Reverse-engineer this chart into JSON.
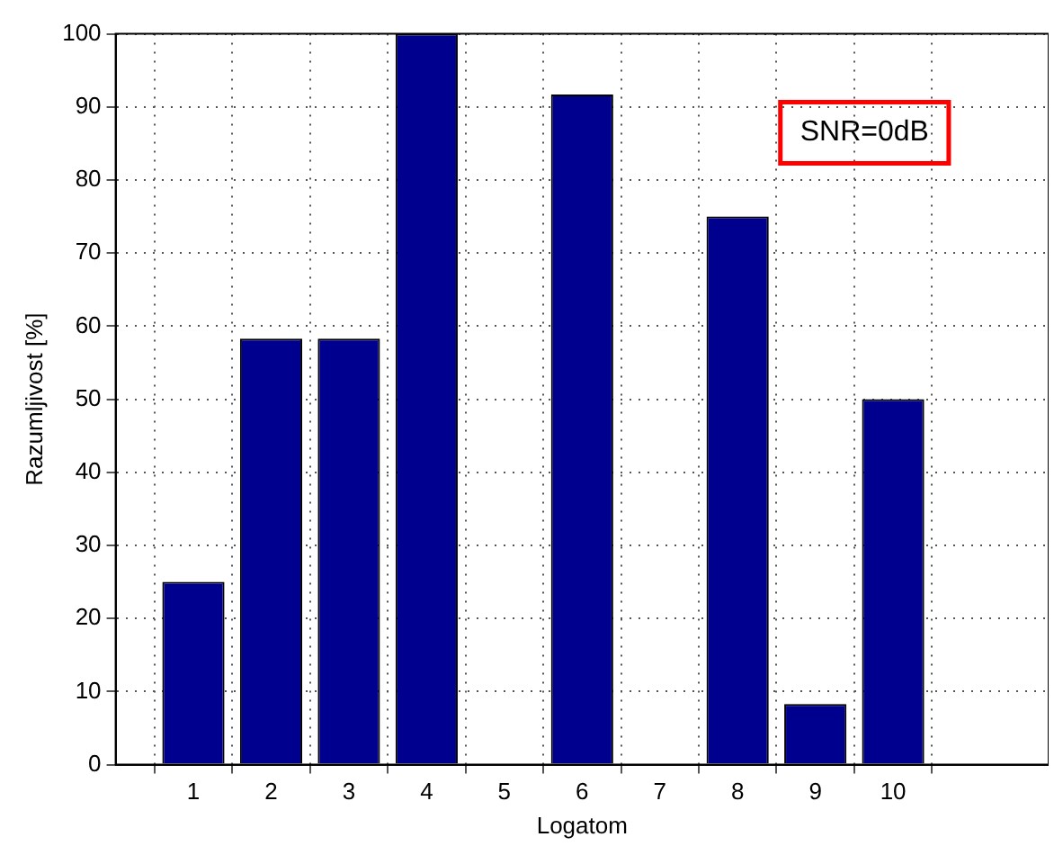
{
  "chart_data": {
    "type": "bar",
    "xlabel": "Logatom",
    "ylabel": "Razumljivost [%]",
    "x": [
      1,
      2,
      3,
      4,
      5,
      6,
      7,
      8,
      9,
      10
    ],
    "values": [
      25,
      58.3,
      58.3,
      100,
      0,
      91.7,
      0,
      75,
      8.3,
      50
    ],
    "color": "#00008f",
    "xlim": [
      0,
      12
    ],
    "xticks": [
      1,
      2,
      3,
      4,
      5,
      6,
      7,
      8,
      9,
      10
    ],
    "ylim": [
      0,
      100
    ],
    "yticks": [
      0,
      10,
      20,
      30,
      40,
      50,
      60,
      70,
      80,
      90,
      100
    ],
    "grid": true,
    "annotations": [
      "SNR=0dB"
    ]
  }
}
